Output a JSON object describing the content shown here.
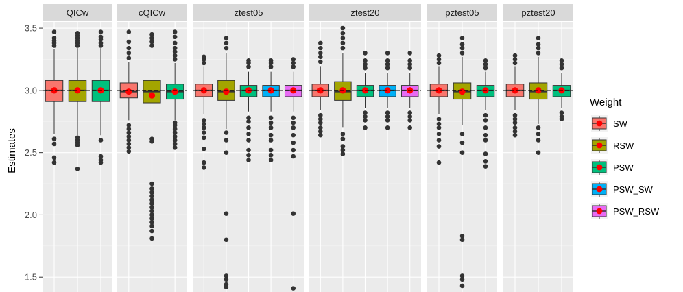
{
  "chart_data": {
    "type": "boxplot",
    "ylabel": "Estimates",
    "xlabel": "",
    "ylim": [
      1.38,
      3.55
    ],
    "yticks": [
      1.5,
      2.0,
      2.5,
      3.0,
      3.5
    ],
    "ytick_labels": [
      "1.5",
      "2.0",
      "2.5",
      "3.0",
      "3.5"
    ],
    "reference_line": 3.0,
    "legend": {
      "title": "Weight",
      "position": "right",
      "entries": [
        {
          "name": "SW",
          "color": "#F8766D"
        },
        {
          "name": "RSW",
          "color": "#A3A500"
        },
        {
          "name": "PSW",
          "color": "#00BF7D"
        },
        {
          "name": "PSW_SW",
          "color": "#00B0F6"
        },
        {
          "name": "PSW_RSW",
          "color": "#E76BF3"
        }
      ]
    },
    "mean_color": "#FF0000",
    "panels": [
      {
        "name": "QICw",
        "boxes": [
          {
            "weight": "SW",
            "q1": 2.91,
            "median": 3.0,
            "q3": 3.08,
            "whisker_low": 2.65,
            "whisker_high": 3.33,
            "mean": 3.0,
            "outliers": [
              2.61,
              2.57,
              2.46,
              2.42,
              3.36,
              3.38,
              3.4,
              3.42,
              3.47
            ]
          },
          {
            "weight": "RSW",
            "q1": 2.91,
            "median": 3.0,
            "q3": 3.08,
            "whisker_low": 2.64,
            "whisker_high": 3.34,
            "mean": 3.0,
            "outliers": [
              2.62,
              2.6,
              2.58,
              2.56,
              2.37,
              3.36,
              3.38,
              3.4,
              3.42,
              3.44,
              3.46
            ]
          },
          {
            "weight": "PSW",
            "q1": 2.91,
            "median": 3.0,
            "q3": 3.08,
            "whisker_low": 2.64,
            "whisker_high": 3.34,
            "mean": 3.0,
            "outliers": [
              2.6,
              2.47,
              2.44,
              2.42,
              3.36,
              3.38,
              3.41,
              3.43,
              3.47
            ]
          }
        ]
      },
      {
        "name": "cQICw",
        "boxes": [
          {
            "weight": "SW",
            "q1": 2.94,
            "median": 2.99,
            "q3": 3.06,
            "whisker_low": 2.76,
            "whisker_high": 3.23,
            "mean": 2.99,
            "outliers": [
              2.51,
              2.54,
              2.57,
              2.6,
              2.63,
              2.66,
              2.69,
              2.72,
              3.26,
              3.3,
              3.34,
              3.39,
              3.47
            ]
          },
          {
            "weight": "RSW",
            "q1": 2.9,
            "median": 2.99,
            "q3": 3.08,
            "whisker_low": 2.64,
            "whisker_high": 3.33,
            "mean": 2.96,
            "outliers": [
              2.61,
              2.59,
              2.25,
              2.21,
              2.18,
              2.15,
              2.12,
              2.09,
              2.06,
              2.03,
              2.0,
              1.97,
              1.94,
              1.91,
              1.87,
              1.81,
              3.36,
              3.39,
              3.42,
              3.45
            ]
          },
          {
            "weight": "PSW",
            "q1": 2.93,
            "median": 2.99,
            "q3": 3.05,
            "whisker_low": 2.76,
            "whisker_high": 3.22,
            "mean": 2.99,
            "outliers": [
              2.54,
              2.57,
              2.6,
              2.63,
              2.66,
              2.69,
              2.72,
              2.74,
              3.25,
              3.28,
              3.31,
              3.34,
              3.38,
              3.43,
              3.47
            ]
          }
        ]
      },
      {
        "name": "ztest05",
        "boxes": [
          {
            "weight": "SW",
            "q1": 2.95,
            "median": 3.0,
            "q3": 3.05,
            "whisker_low": 2.81,
            "whisker_high": 3.19,
            "mean": 3.0,
            "outliers": [
              2.76,
              2.73,
              2.7,
              2.66,
              2.62,
              2.53,
              2.42,
              2.38,
              3.22,
              3.25,
              3.27
            ]
          },
          {
            "weight": "RSW",
            "q1": 2.92,
            "median": 2.99,
            "q3": 3.08,
            "whisker_low": 2.69,
            "whisker_high": 3.3,
            "mean": 2.99,
            "outliers": [
              2.66,
              2.6,
              2.5,
              2.01,
              1.8,
              1.51,
              1.48,
              1.44,
              1.42,
              3.34,
              3.38,
              3.42
            ]
          },
          {
            "weight": "PSW",
            "q1": 2.95,
            "median": 3.0,
            "q3": 3.04,
            "whisker_low": 2.83,
            "whisker_high": 3.15,
            "mean": 3.0,
            "outliers": [
              2.78,
              2.75,
              2.7,
              2.65,
              2.6,
              2.52,
              2.48,
              2.44,
              3.19,
              3.22,
              3.24
            ]
          },
          {
            "weight": "PSW_SW",
            "q1": 2.95,
            "median": 3.0,
            "q3": 3.04,
            "whisker_low": 2.83,
            "whisker_high": 3.15,
            "mean": 3.0,
            "outliers": [
              2.78,
              2.74,
              2.7,
              2.64,
              2.6,
              2.52,
              2.48,
              2.44,
              3.19,
              3.22,
              3.24
            ]
          },
          {
            "weight": "PSW_RSW",
            "q1": 2.95,
            "median": 3.0,
            "q3": 3.04,
            "whisker_low": 2.83,
            "whisker_high": 3.15,
            "mean": 3.0,
            "outliers": [
              2.78,
              2.74,
              2.7,
              2.64,
              2.58,
              2.52,
              2.47,
              2.01,
              1.41,
              3.19,
              3.22,
              3.25
            ]
          }
        ]
      },
      {
        "name": "ztest20",
        "boxes": [
          {
            "weight": "SW",
            "q1": 2.95,
            "median": 3.0,
            "q3": 3.05,
            "whisker_low": 2.84,
            "whisker_high": 3.19,
            "mean": 3.0,
            "outliers": [
              2.8,
              2.77,
              2.74,
              2.7,
              2.67,
              2.64,
              3.23,
              3.27,
              3.3,
              3.34,
              3.38
            ]
          },
          {
            "weight": "RSW",
            "q1": 2.92,
            "median": 2.99,
            "q3": 3.07,
            "whisker_low": 2.7,
            "whisker_high": 3.3,
            "mean": 3.0,
            "outliers": [
              2.65,
              2.61,
              2.55,
              2.52,
              2.49,
              3.34,
              3.38,
              3.42,
              3.46,
              3.5
            ]
          },
          {
            "weight": "PSW",
            "q1": 2.95,
            "median": 3.0,
            "q3": 3.04,
            "whisker_low": 2.86,
            "whisker_high": 3.14,
            "mean": 3.0,
            "outliers": [
              2.82,
              2.79,
              2.76,
              2.7,
              3.18,
              3.21,
              3.24,
              3.3
            ]
          },
          {
            "weight": "PSW_SW",
            "q1": 2.95,
            "median": 3.0,
            "q3": 3.04,
            "whisker_low": 2.86,
            "whisker_high": 3.14,
            "mean": 3.0,
            "outliers": [
              2.82,
              2.79,
              2.76,
              2.7,
              3.18,
              3.21,
              3.24,
              3.3
            ]
          },
          {
            "weight": "PSW_RSW",
            "q1": 2.95,
            "median": 3.0,
            "q3": 3.04,
            "whisker_low": 2.86,
            "whisker_high": 3.14,
            "mean": 3.0,
            "outliers": [
              2.82,
              2.79,
              2.76,
              2.7,
              3.18,
              3.21,
              3.24,
              3.3
            ]
          }
        ]
      },
      {
        "name": "pztest05",
        "boxes": [
          {
            "weight": "SW",
            "q1": 2.95,
            "median": 3.0,
            "q3": 3.05,
            "whisker_low": 2.81,
            "whisker_high": 3.19,
            "mean": 3.0,
            "outliers": [
              2.77,
              2.73,
              2.7,
              2.65,
              2.6,
              2.55,
              2.42,
              3.22,
              3.25,
              3.28
            ]
          },
          {
            "weight": "RSW",
            "q1": 2.93,
            "median": 2.99,
            "q3": 3.06,
            "whisker_low": 2.72,
            "whisker_high": 3.27,
            "mean": 2.99,
            "outliers": [
              2.65,
              2.58,
              2.5,
              1.83,
              1.8,
              1.51,
              1.48,
              1.43,
              3.3,
              3.34,
              3.37,
              3.42
            ]
          },
          {
            "weight": "PSW",
            "q1": 2.95,
            "median": 3.0,
            "q3": 3.04,
            "whisker_low": 2.84,
            "whisker_high": 3.15,
            "mean": 3.0,
            "outliers": [
              2.8,
              2.76,
              2.7,
              2.64,
              2.6,
              2.49,
              2.43,
              2.39,
              3.18,
              3.21,
              3.24
            ]
          }
        ]
      },
      {
        "name": "pztest20",
        "boxes": [
          {
            "weight": "SW",
            "q1": 2.95,
            "median": 3.0,
            "q3": 3.05,
            "whisker_low": 2.84,
            "whisker_high": 3.19,
            "mean": 3.0,
            "outliers": [
              2.8,
              2.77,
              2.74,
              2.7,
              2.67,
              2.64,
              3.22,
              3.25,
              3.28
            ]
          },
          {
            "weight": "RSW",
            "q1": 2.93,
            "median": 2.99,
            "q3": 3.06,
            "whisker_low": 2.73,
            "whisker_high": 3.27,
            "mean": 3.0,
            "outliers": [
              2.7,
              2.65,
              2.6,
              2.5,
              3.3,
              3.34,
              3.37,
              3.42
            ]
          },
          {
            "weight": "PSW",
            "q1": 2.95,
            "median": 3.0,
            "q3": 3.04,
            "whisker_low": 2.86,
            "whisker_high": 3.14,
            "mean": 3.0,
            "outliers": [
              2.82,
              2.79,
              2.77,
              3.18,
              3.21,
              3.24
            ]
          }
        ]
      }
    ]
  }
}
